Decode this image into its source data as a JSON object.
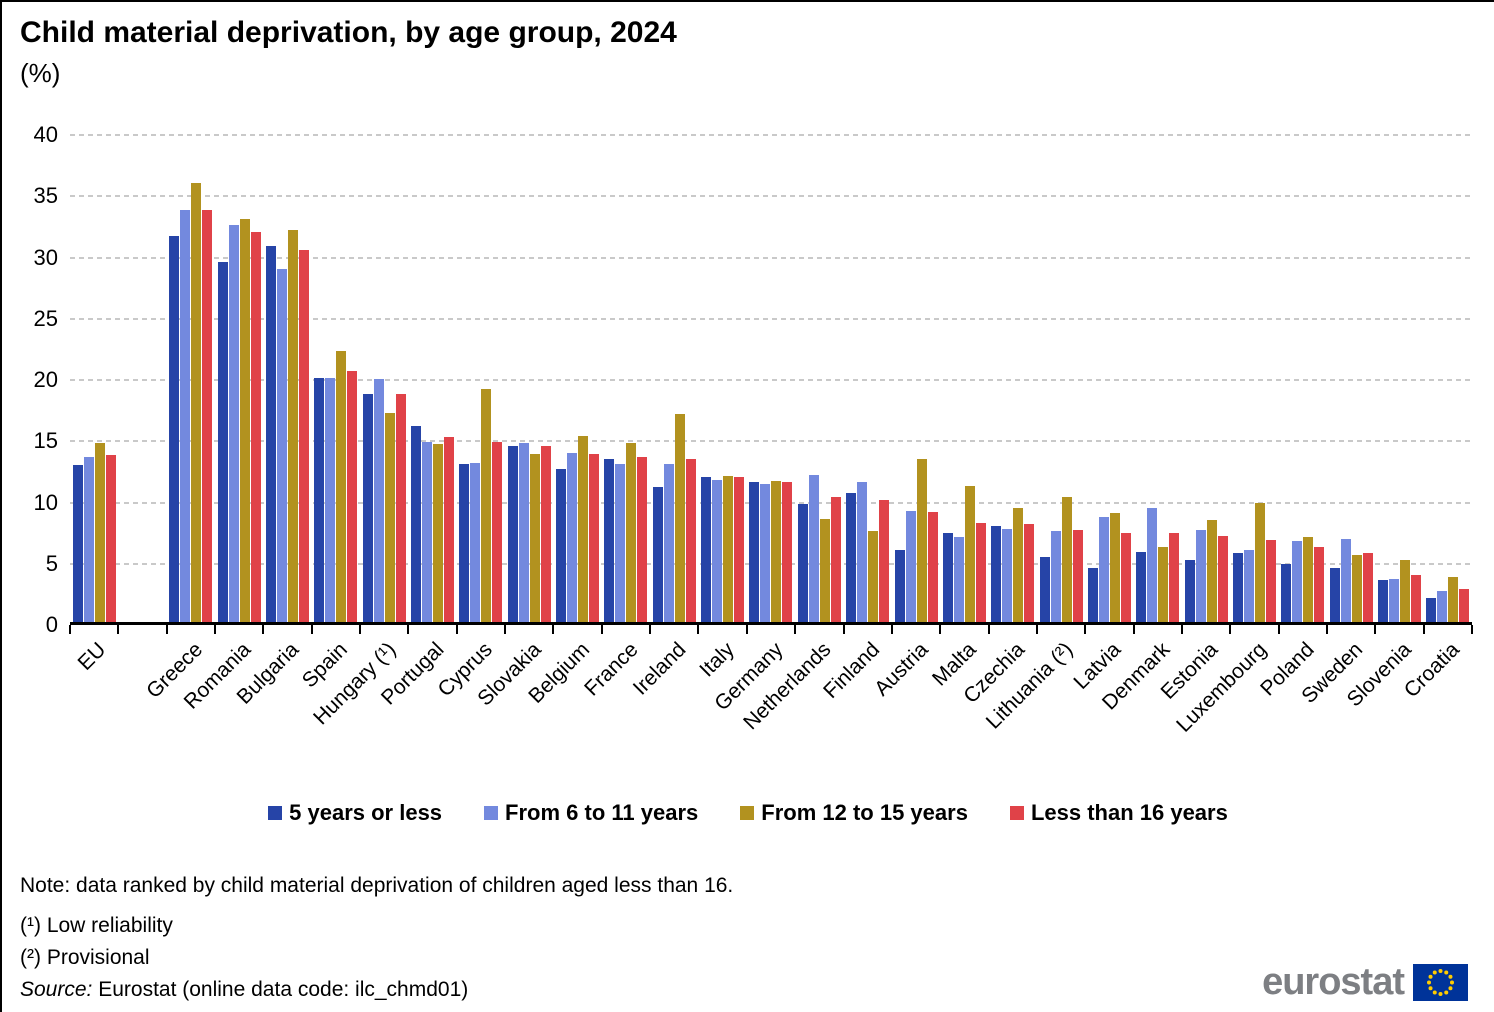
{
  "header": {
    "title": "Child material deprivation, by age group, 2024",
    "subtitle": "(%)"
  },
  "chart_data": {
    "type": "bar",
    "title": "Child material deprivation, by age group, 2024",
    "unit": "%",
    "xlabel": "",
    "ylabel": "",
    "ylim": [
      0,
      40
    ],
    "yticks": [
      0,
      5,
      10,
      15,
      20,
      25,
      30,
      35,
      40
    ],
    "grid": "horizontal-dashed",
    "legend_position": "bottom",
    "spacer_after_index": 0,
    "categories": [
      "EU",
      "Greece",
      "Romania",
      "Bulgaria",
      "Spain",
      "Hungary (¹)",
      "Portugal",
      "Cyprus",
      "Slovakia",
      "Belgium",
      "France",
      "Ireland",
      "Italy",
      "Germany",
      "Netherlands",
      "Finland",
      "Austria",
      "Malta",
      "Czechia",
      "Lithuania (²)",
      "Latvia",
      "Denmark",
      "Estonia",
      "Luxembourg",
      "Poland",
      "Sweden",
      "Slovenia",
      "Croatia"
    ],
    "series": [
      {
        "name": "5 years or less",
        "color": "#2644A7",
        "values": [
          12.8,
          31.5,
          29.4,
          30.7,
          19.9,
          18.6,
          16.0,
          12.9,
          14.4,
          12.5,
          13.3,
          11.0,
          11.8,
          11.4,
          9.6,
          10.5,
          5.9,
          7.3,
          7.8,
          5.3,
          4.4,
          5.7,
          5.1,
          5.6,
          4.7,
          4.4,
          3.4,
          2.0
        ]
      },
      {
        "name": "From 6 to 11 years",
        "color": "#7389DE",
        "values": [
          13.5,
          33.6,
          32.4,
          28.8,
          19.9,
          19.8,
          14.7,
          13.0,
          14.6,
          13.8,
          12.9,
          12.9,
          11.6,
          11.3,
          12.0,
          11.4,
          9.1,
          6.9,
          7.6,
          7.4,
          8.6,
          9.3,
          7.5,
          5.9,
          6.6,
          6.8,
          3.5,
          2.5
        ]
      },
      {
        "name": "From 12 to 15 years",
        "color": "#B2921F",
        "values": [
          14.6,
          35.8,
          32.9,
          32.0,
          22.1,
          17.1,
          14.5,
          19.0,
          13.7,
          15.2,
          14.6,
          17.0,
          11.9,
          11.5,
          8.4,
          7.4,
          13.3,
          11.1,
          9.3,
          10.2,
          8.9,
          6.1,
          8.3,
          9.7,
          6.9,
          5.5,
          5.1,
          3.7
        ]
      },
      {
        "name": "Less than 16 years",
        "color": "#E04248",
        "values": [
          13.6,
          33.6,
          31.8,
          30.4,
          20.5,
          18.6,
          15.1,
          14.7,
          14.4,
          13.7,
          13.5,
          13.3,
          11.8,
          11.4,
          10.2,
          10.0,
          9.0,
          8.1,
          8.0,
          7.5,
          7.3,
          7.3,
          7.0,
          6.7,
          6.1,
          5.6,
          3.8,
          2.7
        ]
      }
    ]
  },
  "notes": {
    "note": "Note: data ranked by child material deprivation of children aged less than 16.",
    "footnote1": "(¹) Low reliability",
    "footnote2": "(²) Provisional",
    "source_label": "Source:",
    "source_text": " Eurostat (online data code: ilc_chmd01)"
  },
  "footer": {
    "logo_text": "eurostat"
  },
  "colors": {
    "axis": "#000000",
    "gridline": "#c9c9c9",
    "logo_gray": "#7d7f83",
    "flag_blue": "#003399",
    "flag_stars": "#FFCC00"
  }
}
